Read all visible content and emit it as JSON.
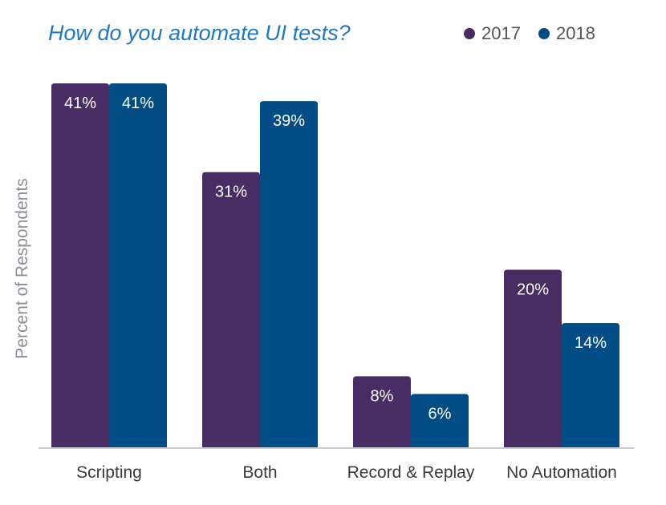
{
  "chart_data": {
    "type": "bar",
    "title": "How do you automate UI tests?",
    "ylabel": "Percent of Respondents",
    "xlabel": "",
    "categories": [
      "Scripting",
      "Both",
      "Record & Replay",
      "No Automation"
    ],
    "series": [
      {
        "name": "2017",
        "color": "#472d63",
        "values": [
          41,
          31,
          8,
          20
        ],
        "labels": [
          "41%",
          "31%",
          "8%",
          "20%"
        ]
      },
      {
        "name": "2018",
        "color": "#024d85",
        "values": [
          41,
          39,
          6,
          14
        ],
        "labels": [
          "41%",
          "39%",
          "6%",
          "14%"
        ]
      }
    ],
    "ylim": [
      0,
      41
    ],
    "legend_position": "top-right",
    "grid": false
  }
}
